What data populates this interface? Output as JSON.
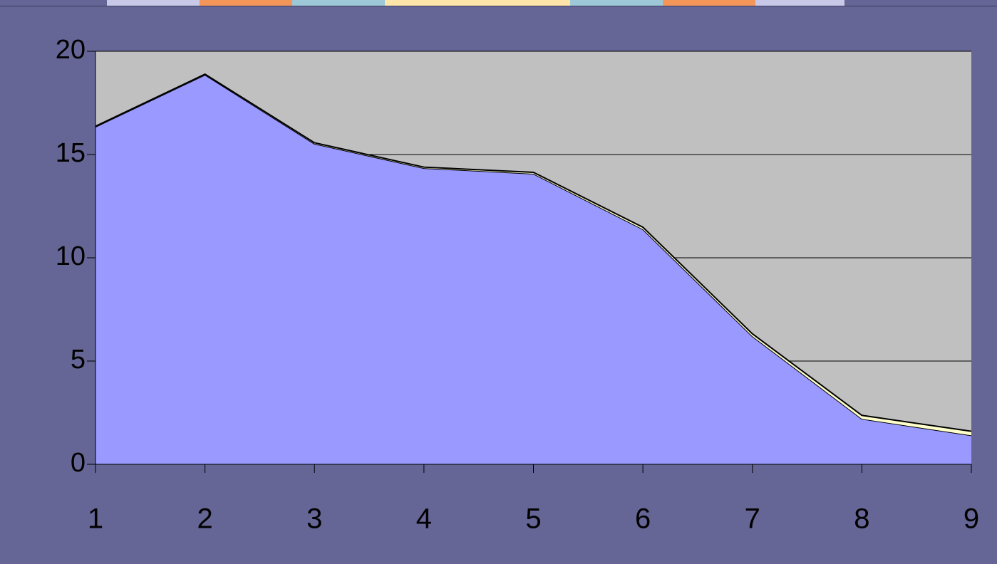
{
  "chart_data": {
    "type": "stacked-area",
    "categories": [
      "1",
      "2",
      "3",
      "4",
      "5",
      "6",
      "7",
      "8",
      "9"
    ],
    "series": [
      {
        "color": "#9999ff",
        "values": [
          16.34,
          18.86,
          15.52,
          14.34,
          14.07,
          11.38,
          6.2,
          2.2,
          1.4
        ]
      },
      {
        "color": "#ffffcc",
        "values": [
          0.03,
          0.03,
          0.05,
          0.05,
          0.07,
          0.1,
          0.12,
          0.17,
          0.2
        ]
      }
    ],
    "ylim": [
      0,
      20
    ],
    "yticks": [
      0,
      5,
      10,
      15,
      20
    ],
    "grid": true,
    "plot_background": "#c0c0c0",
    "background": "#656596"
  }
}
